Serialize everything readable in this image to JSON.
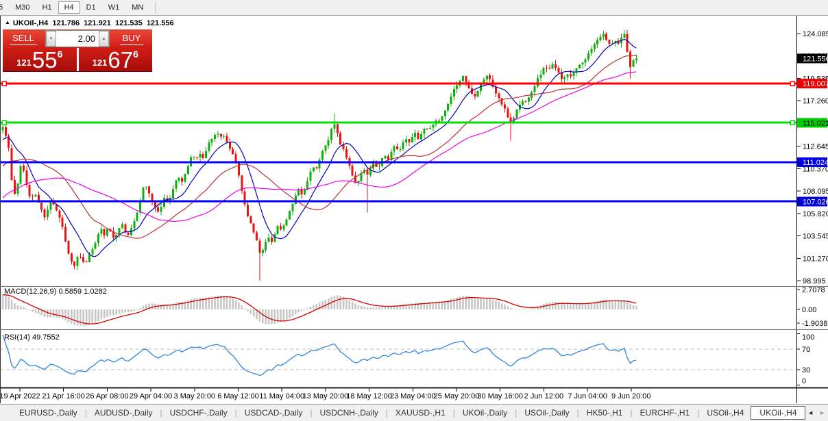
{
  "icons": {
    "collapse_up": "▲",
    "spinner_down": "▼",
    "spinner_up": "▲",
    "tab_arrow_left": "◄",
    "tab_arrow_right": "►"
  },
  "toolbar": {
    "timeframes": [
      "5",
      "M30",
      "H1",
      "H4",
      "D1",
      "W1",
      "MN"
    ],
    "active": "H4"
  },
  "ohlc_header": {
    "symbol": "UKOil-,H4",
    "open": "121.786",
    "high": "121.921",
    "low": "121.535",
    "close": "121.556"
  },
  "trade_panel": {
    "sell": "SELL",
    "buy": "BUY",
    "volume": "2.00",
    "bid": {
      "prefix": "121",
      "big": "55",
      "sup": "6"
    },
    "ask": {
      "prefix": "121",
      "big": "67",
      "sup": "6"
    }
  },
  "price_axis": {
    "ticks": [
      124.085,
      121.81,
      119.535,
      117.26,
      114.985,
      112.645,
      110.37,
      108.095,
      105.82,
      103.545,
      101.27,
      98.995
    ],
    "boxes": [
      {
        "label": "121.556",
        "price": 121.556,
        "bg": "#000000",
        "fg": "#ffffff"
      },
      {
        "label": "119.007",
        "price": 119.007,
        "bg": "#ee0000",
        "fg": "#ffffff"
      },
      {
        "label": "115.021",
        "price": 115.021,
        "bg": "#00cc00",
        "fg": "#000000"
      },
      {
        "label": "111.024",
        "price": 111.024,
        "bg": "#0000dd",
        "fg": "#ffffff"
      },
      {
        "label": "107.026",
        "price": 107.026,
        "bg": "#0000dd",
        "fg": "#ffffff"
      }
    ]
  },
  "chart_data": {
    "type": "candlestick",
    "title": "UKOil-,H4",
    "timeframe": "H4",
    "ohlc_last": {
      "open": 121.786,
      "high": 121.921,
      "low": 121.535,
      "close": 121.556
    },
    "current_price": 121.556,
    "y_range": [
      98.0,
      125.9
    ],
    "colors": {
      "up": "#0db10d",
      "down": "#ee0f0f",
      "ma_fast": "#0000c0",
      "ma_mid": "#c03030",
      "ma_slow": "#f000f0"
    },
    "levels": [
      {
        "price": 119.007,
        "color": "#ff0000"
      },
      {
        "price": 115.021,
        "color": "#00dd00"
      },
      {
        "price": 111.024,
        "color": "#0000ff"
      },
      {
        "price": 107.026,
        "color": "#0000ff"
      }
    ],
    "moving_averages": [
      {
        "period": 10
      },
      {
        "period": 28
      },
      {
        "period": 50
      }
    ],
    "price_path": [
      [
        4,
        114.6
      ],
      [
        8,
        113.8
      ],
      [
        13,
        112.4
      ],
      [
        17,
        109.2
      ],
      [
        21,
        107.6
      ],
      [
        26,
        108.9
      ],
      [
        30,
        110.8
      ],
      [
        35,
        110.1
      ],
      [
        40,
        108.3
      ],
      [
        45,
        107.2
      ],
      [
        50,
        107.9
      ],
      [
        56,
        107.0
      ],
      [
        62,
        105.9
      ],
      [
        66,
        105.2
      ],
      [
        70,
        106.5
      ],
      [
        75,
        107.3
      ],
      [
        80,
        106.5
      ],
      [
        85,
        105.8
      ],
      [
        90,
        104.8
      ],
      [
        95,
        103.3
      ],
      [
        100,
        101.7
      ],
      [
        105,
        100.8
      ],
      [
        110,
        100.4
      ],
      [
        114,
        101.6
      ],
      [
        119,
        101.1
      ],
      [
        124,
        100.6
      ],
      [
        130,
        101.6
      ],
      [
        136,
        102.5
      ],
      [
        142,
        103.4
      ],
      [
        147,
        104.2
      ],
      [
        152,
        103.6
      ],
      [
        157,
        104.4
      ],
      [
        162,
        103.8
      ],
      [
        167,
        103.2
      ],
      [
        172,
        104.0
      ],
      [
        177,
        104.8
      ],
      [
        182,
        104.1
      ],
      [
        187,
        103.5
      ],
      [
        192,
        104.3
      ],
      [
        197,
        105.3
      ],
      [
        202,
        106.5
      ],
      [
        207,
        107.9
      ],
      [
        211,
        108.9
      ],
      [
        216,
        108.1
      ],
      [
        221,
        107.3
      ],
      [
        226,
        106.5
      ],
      [
        231,
        105.9
      ],
      [
        236,
        106.8
      ],
      [
        241,
        107.6
      ],
      [
        246,
        107.0
      ],
      [
        251,
        108.0
      ],
      [
        256,
        108.9
      ],
      [
        261,
        109.5
      ],
      [
        266,
        109.0
      ],
      [
        271,
        110.1
      ],
      [
        276,
        111.1
      ],
      [
        281,
        111.8
      ],
      [
        286,
        111.2
      ],
      [
        291,
        112.0
      ],
      [
        296,
        111.4
      ],
      [
        301,
        112.3
      ],
      [
        306,
        113.1
      ],
      [
        311,
        113.7
      ],
      [
        316,
        114.1
      ],
      [
        321,
        113.5
      ],
      [
        326,
        113.9
      ],
      [
        331,
        113.1
      ],
      [
        336,
        112.3
      ],
      [
        341,
        111.5
      ],
      [
        346,
        110.4
      ],
      [
        351,
        108.8
      ],
      [
        356,
        106.9
      ],
      [
        361,
        105.6
      ],
      [
        366,
        104.8
      ],
      [
        371,
        103.8
      ],
      [
        376,
        102.8
      ],
      [
        381,
        101.4
      ],
      [
        386,
        102.7
      ],
      [
        391,
        103.5
      ],
      [
        396,
        103.0
      ],
      [
        401,
        103.9
      ],
      [
        406,
        104.6
      ],
      [
        411,
        104.0
      ],
      [
        416,
        105.0
      ],
      [
        421,
        105.8
      ],
      [
        426,
        106.6
      ],
      [
        431,
        107.5
      ],
      [
        436,
        108.2
      ],
      [
        441,
        107.6
      ],
      [
        446,
        108.5
      ],
      [
        451,
        109.6
      ],
      [
        456,
        110.8
      ],
      [
        461,
        110.2
      ],
      [
        466,
        111.2
      ],
      [
        471,
        112.1
      ],
      [
        476,
        112.8
      ],
      [
        481,
        113.7
      ],
      [
        486,
        115.3
      ],
      [
        491,
        114.1
      ],
      [
        496,
        113.0
      ],
      [
        501,
        112.2
      ],
      [
        506,
        111.4
      ],
      [
        511,
        110.3
      ],
      [
        516,
        109.2
      ],
      [
        521,
        108.9
      ],
      [
        526,
        109.7
      ],
      [
        531,
        110.3
      ],
      [
        536,
        109.7
      ],
      [
        541,
        110.6
      ],
      [
        546,
        111.0
      ],
      [
        551,
        110.4
      ],
      [
        556,
        111.2
      ],
      [
        561,
        111.8
      ],
      [
        566,
        111.3
      ],
      [
        571,
        112.0
      ],
      [
        576,
        112.6
      ],
      [
        581,
        112.1
      ],
      [
        586,
        112.8
      ],
      [
        591,
        113.4
      ],
      [
        596,
        112.9
      ],
      [
        601,
        113.5
      ],
      [
        606,
        114.0
      ],
      [
        611,
        113.4
      ],
      [
        616,
        114.1
      ],
      [
        621,
        114.7
      ],
      [
        626,
        114.2
      ],
      [
        631,
        114.9
      ],
      [
        636,
        115.4
      ],
      [
        641,
        115.0
      ],
      [
        646,
        115.8
      ],
      [
        651,
        116.4
      ],
      [
        656,
        117.2
      ],
      [
        661,
        118.1
      ],
      [
        666,
        118.9
      ],
      [
        671,
        119.4
      ],
      [
        676,
        119.8
      ],
      [
        681,
        119.0
      ],
      [
        686,
        118.3
      ],
      [
        691,
        117.6
      ],
      [
        696,
        118.2
      ],
      [
        701,
        118.9
      ],
      [
        706,
        119.5
      ],
      [
        711,
        119.9
      ],
      [
        716,
        119.2
      ],
      [
        721,
        118.4
      ],
      [
        726,
        117.7
      ],
      [
        731,
        117.1
      ],
      [
        736,
        116.4
      ],
      [
        741,
        115.6
      ],
      [
        746,
        114.9
      ],
      [
        751,
        115.9
      ],
      [
        756,
        116.6
      ],
      [
        761,
        117.3
      ],
      [
        766,
        117.0
      ],
      [
        771,
        117.7
      ],
      [
        776,
        118.3
      ],
      [
        781,
        119.0
      ],
      [
        786,
        119.7
      ],
      [
        791,
        120.3
      ],
      [
        796,
        120.8
      ],
      [
        801,
        120.4
      ],
      [
        806,
        120.9
      ],
      [
        811,
        120.5
      ],
      [
        816,
        119.9
      ],
      [
        821,
        119.5
      ],
      [
        826,
        120.0
      ],
      [
        831,
        119.7
      ],
      [
        836,
        120.2
      ],
      [
        841,
        120.6
      ],
      [
        846,
        121.1
      ],
      [
        851,
        121.0
      ],
      [
        856,
        121.7
      ],
      [
        861,
        122.3
      ],
      [
        866,
        122.8
      ],
      [
        871,
        123.3
      ],
      [
        876,
        123.8
      ],
      [
        881,
        124.0
      ],
      [
        886,
        123.4
      ],
      [
        891,
        123.0
      ],
      [
        896,
        123.4
      ],
      [
        901,
        123.1
      ],
      [
        906,
        123.6
      ],
      [
        911,
        123.9
      ],
      [
        915,
        122.2
      ],
      [
        919,
        120.6
      ],
      [
        923,
        121.2
      ],
      [
        928,
        121.556
      ]
    ],
    "spikes": [
      [
        381,
        "low",
        99.0
      ],
      [
        486,
        "high",
        115.95
      ],
      [
        536,
        "low",
        105.9
      ],
      [
        746,
        "low",
        113.2
      ],
      [
        881,
        "high",
        124.35
      ],
      [
        919,
        "low",
        119.5
      ]
    ],
    "macd": {
      "label": "MACD(12,26,9) 0.5859 1.0282",
      "params": [
        12,
        26,
        9
      ],
      "main_value": "0.5859",
      "signal_value": "1.0282",
      "axis_labels": [
        "2.7078",
        "0.00",
        "-1.9038"
      ],
      "axis_values": [
        2.7078,
        0,
        -1.9038
      ],
      "bar_color": "#c6c6c6",
      "signal_color": "#d40000"
    },
    "rsi": {
      "label": "RSI(14) 49.7552",
      "period": 14,
      "value": "49.7552",
      "axis_labels": [
        "100",
        "70",
        "30",
        "0"
      ],
      "axis_values": [
        100,
        70,
        30,
        0
      ],
      "levels": [
        70,
        30
      ],
      "line_color": "#2e86e0",
      "level_color": "#b8b8b8"
    },
    "x_labels": [
      "19 Apr 2022",
      "21 Apr 16:00",
      "26 Apr 08:00",
      "29 Apr 04:00",
      "3 May 20:00",
      "6 May 12:00",
      "11 May 04:00",
      "13 May 20:00",
      "18 May 12:00",
      "23 May 04:00",
      "25 May 20:00",
      "30 May 16:00",
      "2 Jun 12:00",
      "7 Jun 04:00",
      "9 Jun 20:00"
    ]
  },
  "tabs": {
    "items": [
      "EURUSD-,Daily",
      "AUDUSD-,Daily",
      "USDCHF-,Daily",
      "USDCAD-,Daily",
      "USDCNH-,Daily",
      "XAUUSD-,H1",
      "UKOil-,Daily",
      "USOil-,Daily",
      "HK50-,H1",
      "EURCHF-,H1",
      "USOil-,H4",
      "UKOil-,H4"
    ],
    "active": "UKOil-,H4"
  }
}
